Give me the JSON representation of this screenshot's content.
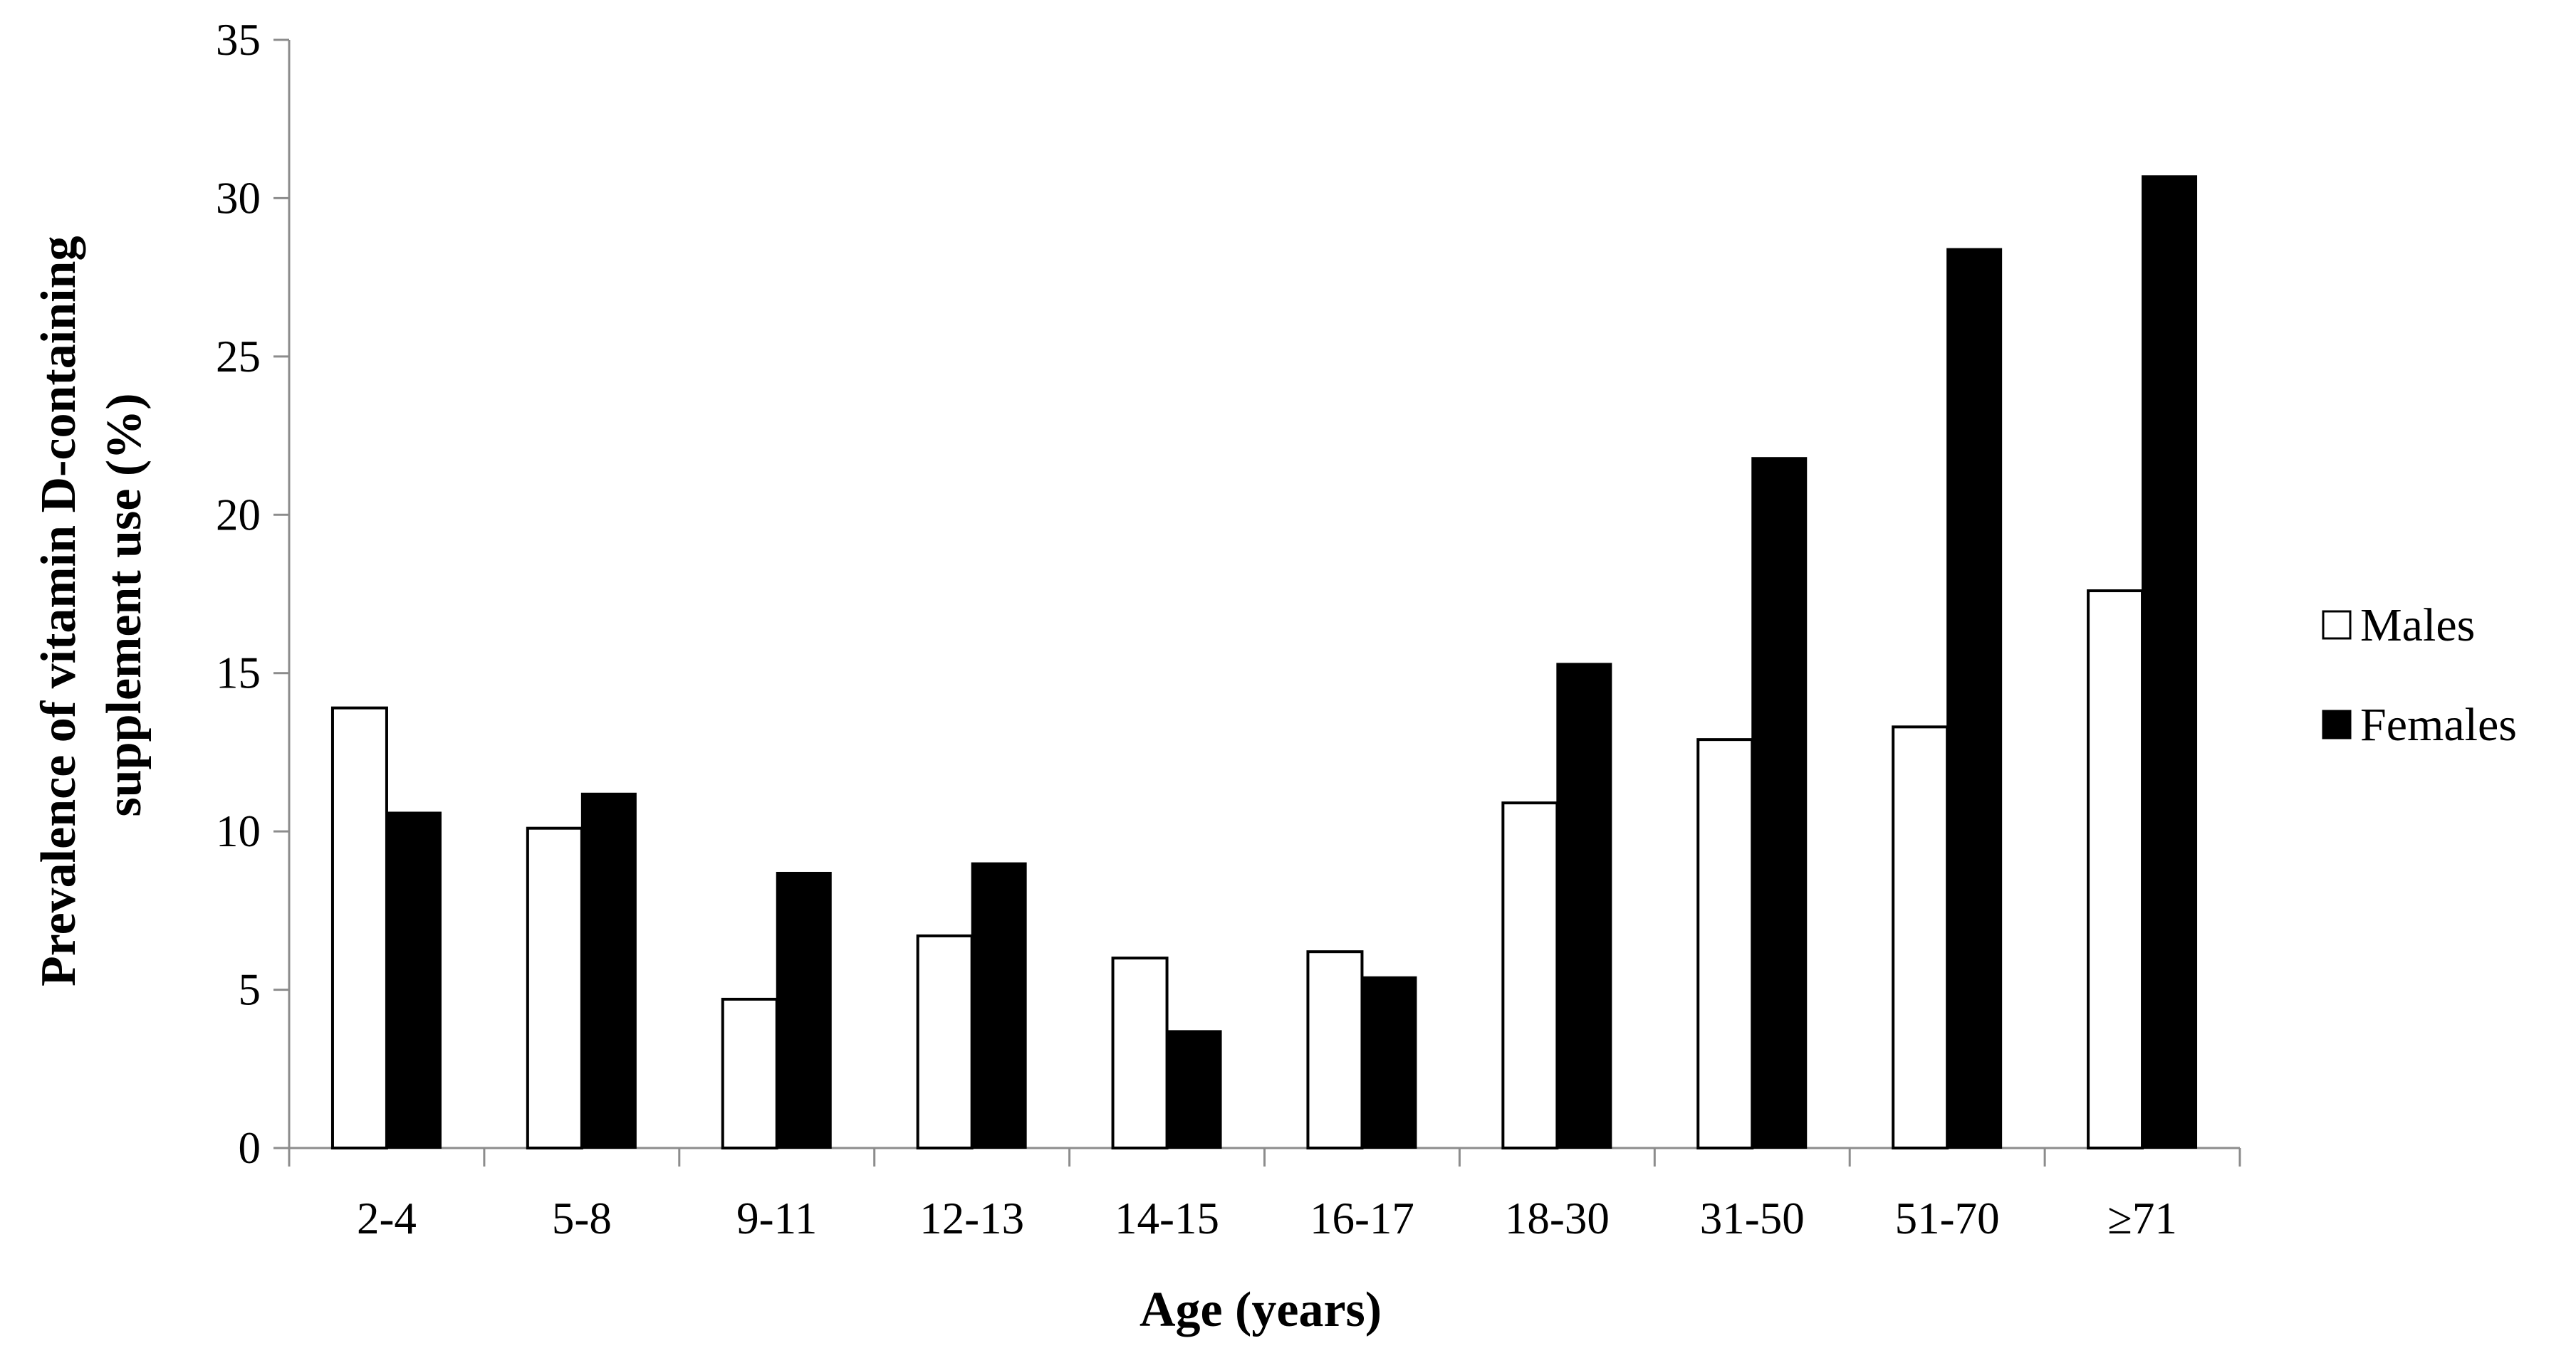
{
  "chart_data": {
    "type": "bar",
    "title": "",
    "xlabel": "Age (years)",
    "ylabel_lines": [
      "Prevalence of vitamin D-containing",
      "supplement use (%)"
    ],
    "ylim": [
      0,
      35
    ],
    "yticks": [
      0,
      5,
      10,
      15,
      20,
      25,
      30,
      35
    ],
    "ytick_labels": [
      "0",
      "5",
      "10",
      "15",
      "20",
      "25",
      "30",
      "35"
    ],
    "categories": [
      "2-4",
      "5-8",
      "9-11",
      "12-13",
      "14-15",
      "16-17",
      "18-30",
      "31-50",
      "51-70",
      "≥71"
    ],
    "series": [
      {
        "name": "Males",
        "fill": "#ffffff",
        "stroke": "#000000",
        "values": [
          13.9,
          10.1,
          4.7,
          6.7,
          6.0,
          6.2,
          10.9,
          12.9,
          13.3,
          17.6
        ]
      },
      {
        "name": "Females",
        "fill": "#000000",
        "stroke": "#000000",
        "values": [
          10.6,
          11.2,
          8.7,
          9.0,
          3.7,
          5.4,
          15.3,
          21.8,
          28.4,
          30.7
        ]
      }
    ],
    "grid": false,
    "legend_position": "right"
  }
}
